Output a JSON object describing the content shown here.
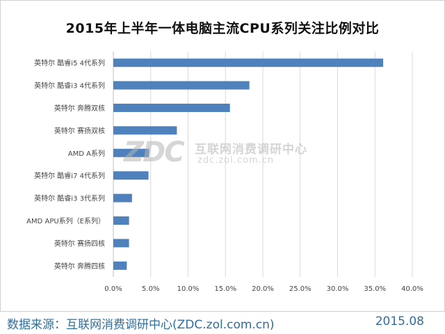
{
  "chart_data": {
    "type": "bar",
    "orientation": "horizontal",
    "title": "2015年上半年一体电脑主流CPU系列关注比例对比",
    "xlabel": "",
    "ylabel": "",
    "categories": [
      "英特尔 酷睿i5 4代系列",
      "英特尔 酷睿i3 4代系列",
      "英特尔 奔腾双核",
      "英特尔 赛扬双核",
      "AMD A系列",
      "英特尔 酷睿i7 4代系列",
      "英特尔 酷睿i3 3代系列",
      "AMD APU系列（E系列）",
      "英特尔 赛扬四核",
      "英特尔 奔腾四核"
    ],
    "values": [
      36.1,
      18.2,
      15.6,
      8.5,
      4.8,
      4.7,
      2.5,
      2.1,
      2.1,
      1.8
    ],
    "xlim": [
      0,
      40
    ],
    "xticks": [
      0,
      5,
      10,
      15,
      20,
      25,
      30,
      35,
      40
    ],
    "tick_labels": [
      "0.0%",
      "5.0%",
      "10.0%",
      "15.0%",
      "20.0%",
      "25.0%",
      "30.0%",
      "35.0%",
      "40.0%"
    ],
    "grid": true,
    "legend": "none",
    "bar_color": "#4f81bd"
  },
  "watermark": {
    "logo": "ZDC",
    "name": "互联网消费调研中心",
    "url": "zdc.zol.com.cn"
  },
  "footer": {
    "source": "数据来源：互联网消费调研中心(ZDC.zol.com.cn)",
    "date": "2015.08"
  }
}
